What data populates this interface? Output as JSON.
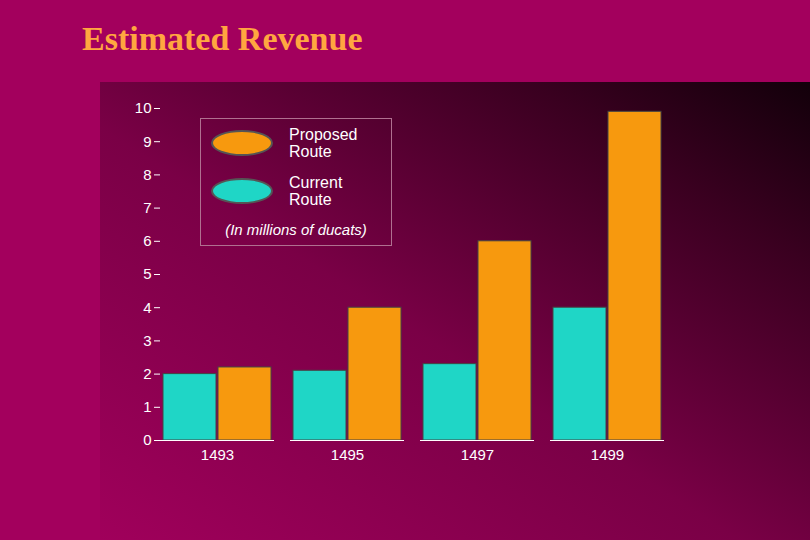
{
  "chart_data": {
    "type": "bar",
    "title": "Estimated Revenue",
    "annotation": "(In millions of ducats)",
    "categories": [
      "1493",
      "1495",
      "1497",
      "1499"
    ],
    "series": [
      {
        "name": "Current Route",
        "color": "#1fd6c6",
        "values": [
          2.0,
          2.1,
          2.3,
          4.0
        ]
      },
      {
        "name": "Proposed Route",
        "color": "#f7990e",
        "values": [
          2.2,
          4.0,
          6.0,
          9.9
        ]
      }
    ],
    "ylim": [
      0,
      10
    ],
    "yticks": [
      0,
      1,
      2,
      3,
      4,
      5,
      6,
      7,
      8,
      9,
      10
    ],
    "grid": false,
    "legend": "top-left"
  }
}
